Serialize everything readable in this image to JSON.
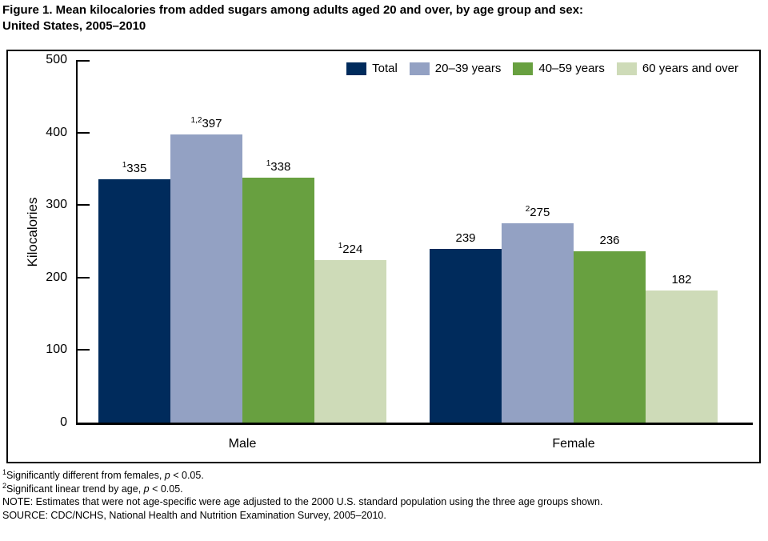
{
  "title": {
    "line1": "Figure 1. Mean kilocalories from added sugars among adults aged 20 and over, by age group and sex:",
    "line2": "United States, 2005–2010"
  },
  "chart_data": {
    "type": "bar",
    "title": "Mean kilocalories from added sugars among adults aged 20 and over, by age group and sex: United States, 2005–2010",
    "categories": [
      "Male",
      "Female"
    ],
    "series": [
      {
        "name": "Total",
        "color": "#002B5C",
        "values": [
          335,
          239
        ],
        "value_superscripts": [
          "1",
          ""
        ]
      },
      {
        "name": "20–39 years",
        "color": "#93A1C3",
        "values": [
          397,
          275
        ],
        "value_superscripts": [
          "1,2",
          "2"
        ]
      },
      {
        "name": "40–59 years",
        "color": "#68A040",
        "values": [
          338,
          236
        ],
        "value_superscripts": [
          "1",
          ""
        ]
      },
      {
        "name": "60 years and over",
        "color": "#CEDBB8",
        "values": [
          224,
          182
        ],
        "value_superscripts": [
          "1",
          ""
        ]
      }
    ],
    "ylabel": "Kilocalories",
    "ylim": [
      0,
      500
    ],
    "yticks": [
      0,
      100,
      200,
      300,
      400,
      500
    ],
    "grid": false,
    "legend_position": "top-right-inside"
  },
  "footnotes": [
    {
      "sup": "1",
      "text": "Significantly different from females, ",
      "italic": "p",
      "rest": " < 0.05."
    },
    {
      "sup": "2",
      "text": "Significant linear trend by age, ",
      "italic": "p",
      "rest": " < 0.05."
    },
    {
      "sup": "",
      "text": "NOTE: Estimates that were not age-specific were age adjusted to the 2000 U.S. standard population using the three age groups shown.",
      "italic": "",
      "rest": ""
    },
    {
      "sup": "",
      "text": "SOURCE: CDC/NCHS, National Health and Nutrition Examination Survey, 2005–2010.",
      "italic": "",
      "rest": ""
    }
  ]
}
